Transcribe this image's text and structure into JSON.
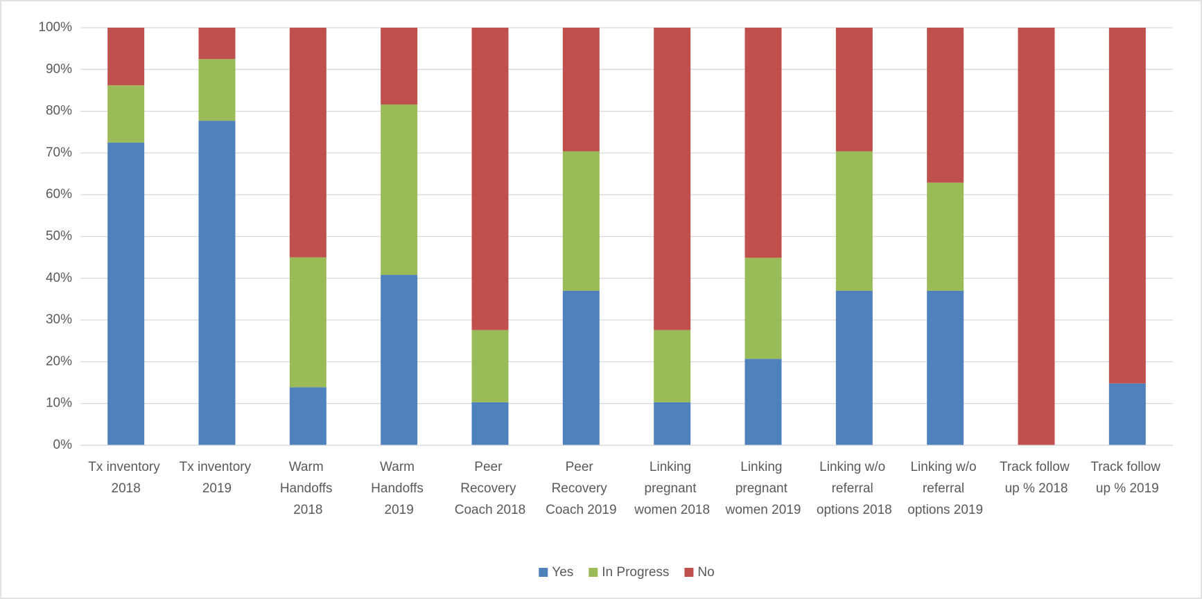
{
  "chart_data": {
    "type": "stacked_bar",
    "categories": [
      "Tx inventory 2018",
      "Tx inventory 2019",
      "Warm Handoffs 2018",
      "Warm Handoffs 2019",
      "Peer Recovery Coach 2018",
      "Peer Recovery Coach 2019",
      "Linking pregnant women 2018",
      "Linking pregnant women 2019",
      "Linking w/o referral options 2018",
      "Linking w/o referral options 2019",
      "Track follow up % 2018",
      "Track follow up % 2019"
    ],
    "series": [
      {
        "name": "Yes",
        "color": "#4f81bd",
        "values": [
          72.5,
          77.7,
          13.9,
          40.8,
          10.3,
          37,
          10.3,
          20.7,
          37,
          37,
          0,
          14.8
        ]
      },
      {
        "name": "In Progress",
        "color": "#9bbb59",
        "values": [
          13.7,
          14.8,
          31.1,
          40.8,
          17.3,
          33.4,
          17.3,
          24.2,
          33.4,
          25.9,
          0,
          0
        ]
      },
      {
        "name": "No",
        "color": "#c0504d",
        "values": [
          13.8,
          7.5,
          55,
          18.4,
          72.4,
          29.6,
          72.4,
          55.1,
          29.6,
          37.1,
          100,
          85.2
        ]
      }
    ],
    "ylim": [
      0,
      100
    ],
    "yticks": [
      {
        "value": 0,
        "label": "0%"
      },
      {
        "value": 10,
        "label": "10%"
      },
      {
        "value": 20,
        "label": "20%"
      },
      {
        "value": 30,
        "label": "30%"
      },
      {
        "value": 40,
        "label": "40%"
      },
      {
        "value": 50,
        "label": "50%"
      },
      {
        "value": 60,
        "label": "60%"
      },
      {
        "value": 70,
        "label": "70%"
      },
      {
        "value": 80,
        "label": "80%"
      },
      {
        "value": 90,
        "label": "90%"
      },
      {
        "value": 100,
        "label": "100%"
      }
    ],
    "grid": true,
    "legend": "bottom"
  }
}
